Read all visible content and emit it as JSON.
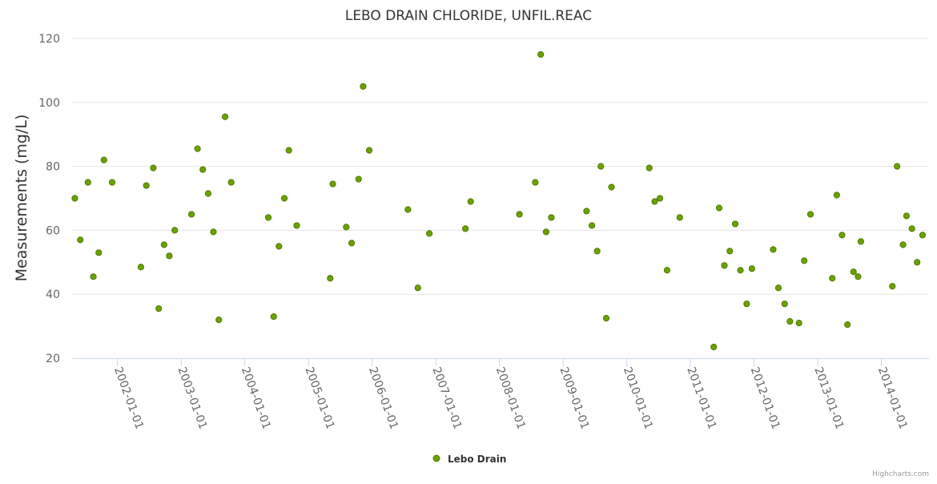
{
  "chart_data": {
    "type": "scatter",
    "title": "LEBO DRAIN CHLORIDE, UNFIL.REAC",
    "xlabel": "",
    "ylabel": "Measurements (mg/L)",
    "ylim": [
      20,
      120
    ],
    "yticks": [
      20,
      40,
      60,
      80,
      100,
      120
    ],
    "xlim": [
      "2001-04-15",
      "2014-10-01"
    ],
    "xticks": [
      "2002-01-01",
      "2003-01-01",
      "2004-01-01",
      "2005-01-01",
      "2006-01-01",
      "2007-01-01",
      "2008-01-01",
      "2009-01-01",
      "2010-01-01",
      "2011-01-01",
      "2012-01-01",
      "2013-01-01",
      "2014-01-01"
    ],
    "grid": true,
    "legend": "bottom-center",
    "series": [
      {
        "name": "Lebo Drain",
        "color": "#6aa200",
        "marker_edge": "#4f7a00",
        "points": [
          [
            "2001-05-01",
            70
          ],
          [
            "2001-06-01",
            57
          ],
          [
            "2001-07-15",
            75
          ],
          [
            "2001-08-15",
            45.5
          ],
          [
            "2001-09-15",
            53
          ],
          [
            "2001-10-15",
            82
          ],
          [
            "2001-12-01",
            75
          ],
          [
            "2002-05-15",
            48.5
          ],
          [
            "2002-06-15",
            74
          ],
          [
            "2002-07-25",
            79.5
          ],
          [
            "2002-08-25",
            35.5
          ],
          [
            "2002-09-25",
            55.5
          ],
          [
            "2002-10-25",
            52
          ],
          [
            "2002-11-25",
            60
          ],
          [
            "2003-03-01",
            65
          ],
          [
            "2003-04-05",
            85.5
          ],
          [
            "2003-05-05",
            79
          ],
          [
            "2003-06-05",
            71.5
          ],
          [
            "2003-07-05",
            59.5
          ],
          [
            "2003-08-05",
            32
          ],
          [
            "2003-09-10",
            95.5
          ],
          [
            "2003-10-15",
            75
          ],
          [
            "2004-05-15",
            64
          ],
          [
            "2004-06-15",
            33
          ],
          [
            "2004-07-15",
            55
          ],
          [
            "2004-08-15",
            70
          ],
          [
            "2004-09-10",
            85
          ],
          [
            "2004-10-25",
            61.5
          ],
          [
            "2005-05-05",
            45
          ],
          [
            "2005-05-20",
            74.5
          ],
          [
            "2005-08-05",
            61
          ],
          [
            "2005-09-05",
            56
          ],
          [
            "2005-10-15",
            76
          ],
          [
            "2005-11-10",
            105
          ],
          [
            "2005-12-15",
            85
          ],
          [
            "2006-07-25",
            66.5
          ],
          [
            "2006-09-20",
            42
          ],
          [
            "2006-11-25",
            59
          ],
          [
            "2007-06-20",
            60.5
          ],
          [
            "2007-07-20",
            69
          ],
          [
            "2008-04-25",
            65
          ],
          [
            "2008-07-25",
            75
          ],
          [
            "2008-08-25",
            115
          ],
          [
            "2008-09-25",
            59.5
          ],
          [
            "2008-10-25",
            64
          ],
          [
            "2009-05-15",
            66
          ],
          [
            "2009-06-15",
            61.5
          ],
          [
            "2009-07-15",
            53.5
          ],
          [
            "2009-08-05",
            80
          ],
          [
            "2009-09-05",
            32.5
          ],
          [
            "2009-10-05",
            73.5
          ],
          [
            "2010-05-10",
            79.5
          ],
          [
            "2010-06-10",
            69
          ],
          [
            "2010-07-10",
            70
          ],
          [
            "2010-08-20",
            47.5
          ],
          [
            "2010-11-01",
            64
          ],
          [
            "2011-05-15",
            23.5
          ],
          [
            "2011-06-15",
            67
          ],
          [
            "2011-07-15",
            49
          ],
          [
            "2011-08-15",
            53.5
          ],
          [
            "2011-09-15",
            62
          ],
          [
            "2011-10-15",
            47.5
          ],
          [
            "2011-11-20",
            37
          ],
          [
            "2011-12-20",
            48
          ],
          [
            "2012-04-20",
            54
          ],
          [
            "2012-05-20",
            42
          ],
          [
            "2012-06-25",
            37
          ],
          [
            "2012-07-25",
            31.5
          ],
          [
            "2012-09-15",
            31
          ],
          [
            "2012-10-15",
            50.5
          ],
          [
            "2012-11-20",
            65
          ],
          [
            "2013-03-25",
            45
          ],
          [
            "2013-04-20",
            71
          ],
          [
            "2013-05-20",
            58.5
          ],
          [
            "2013-06-20",
            30.5
          ],
          [
            "2013-07-25",
            47
          ],
          [
            "2013-08-20",
            45.5
          ],
          [
            "2013-09-05",
            56.5
          ],
          [
            "2014-03-05",
            42.5
          ],
          [
            "2014-04-01",
            80
          ],
          [
            "2014-05-05",
            55.5
          ],
          [
            "2014-05-25",
            64.5
          ],
          [
            "2014-06-25",
            60.5
          ],
          [
            "2014-07-25",
            50
          ],
          [
            "2014-08-25",
            58.5
          ]
        ]
      }
    ],
    "credit": "Highcharts.com"
  }
}
